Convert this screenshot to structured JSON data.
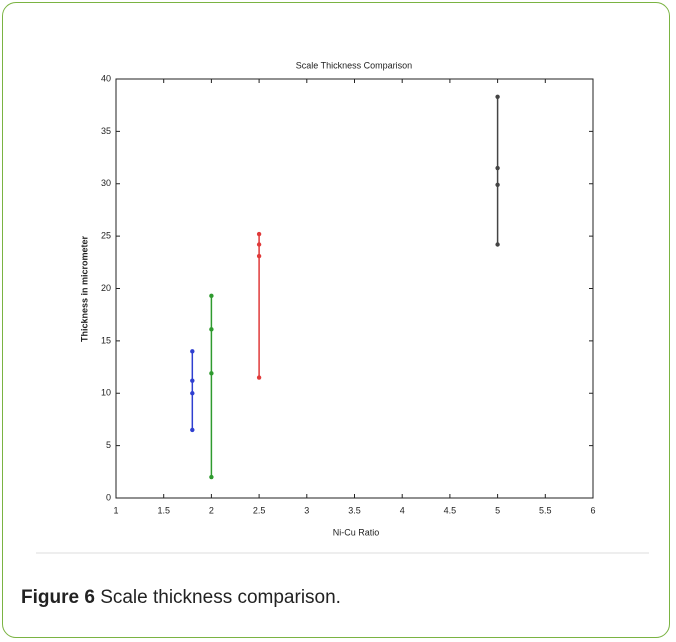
{
  "chart_data": {
    "type": "line",
    "title": "Scale Thickness Comparison",
    "x_label": "Ni-Cu Ratio",
    "y_label": "Thickness in micrometer",
    "xlim": [
      1,
      6
    ],
    "xticks": [
      1,
      1.5,
      2,
      2.5,
      3,
      3.5,
      4,
      4.5,
      5,
      5.5,
      6
    ],
    "ylim": [
      0,
      40
    ],
    "yticks": [
      0,
      5,
      10,
      15,
      20,
      25,
      30,
      35,
      40
    ],
    "grid": false,
    "series": [
      {
        "color": "#2f3fd0",
        "x": [
          1.8,
          1.8,
          1.8,
          1.8
        ],
        "values": [
          14,
          11.2,
          10,
          6.5
        ]
      },
      {
        "color": "#2e9a2e",
        "x": [
          2,
          2,
          2,
          2
        ],
        "values": [
          19.3,
          16.1,
          11.9,
          2
        ]
      },
      {
        "color": "#e03a3a",
        "x": [
          2.5,
          2.5,
          2.5,
          2.5
        ],
        "values": [
          25.2,
          24.2,
          23.1,
          11.5
        ]
      },
      {
        "color": "#444444",
        "x": [
          5,
          5,
          5,
          5
        ],
        "values": [
          38.3,
          31.5,
          29.9,
          24.2
        ]
      }
    ]
  },
  "caption": {
    "label": "Figure 6",
    "text": "Scale thickness comparison."
  }
}
